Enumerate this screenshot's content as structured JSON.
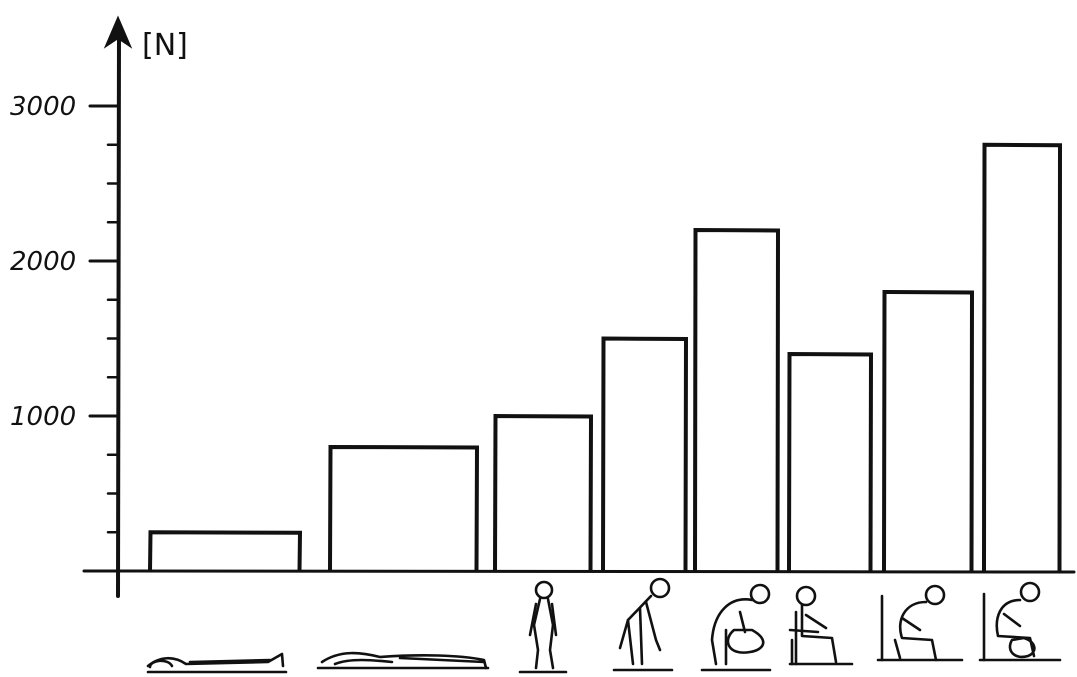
{
  "chart_data": {
    "type": "bar",
    "ylabel": "[N]",
    "ylim": [
      0,
      3300
    ],
    "y_ticks": [
      "1000",
      "2000",
      "3000"
    ],
    "categories": [
      "lying-supine-icon",
      "lying-reclined-icon",
      "standing-icon",
      "standing-bent-forward-icon",
      "standing-bent-lifting-icon",
      "sitting-upright-icon",
      "sitting-bent-forward-icon",
      "sitting-bent-lifting-icon"
    ],
    "values": [
      250,
      800,
      1000,
      1500,
      2200,
      1400,
      1800,
      2750
    ]
  }
}
